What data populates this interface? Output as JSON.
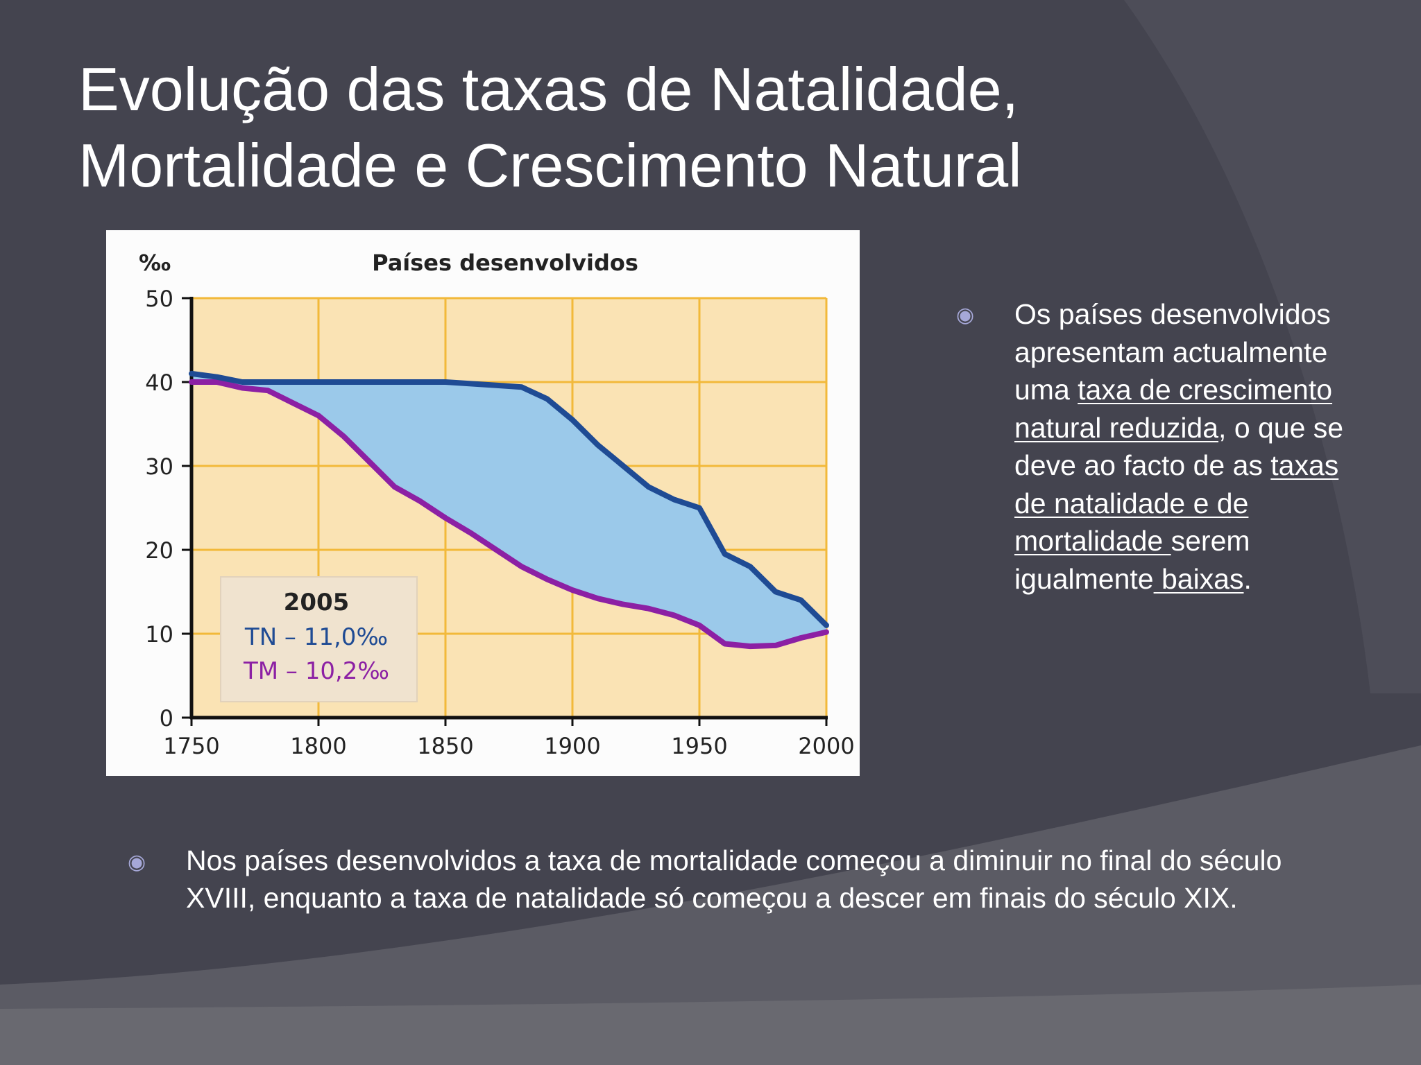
{
  "slide": {
    "title_line1": "Evolução das taxas de Natalidade,",
    "title_line2": "Mortalidade e Crescimento Natural"
  },
  "colors": {
    "background": "#44444f",
    "chart_bg": "#fae3b4",
    "grid": "#f2b93a",
    "natality": "#1f4b94",
    "mortality": "#8c20a4",
    "fill": "#9bc9ea",
    "bullet": "#a6a8d8"
  },
  "bullets": {
    "icon": "circle-dot-icon",
    "right": {
      "p1": "Os países desenvolvidos apresentam actualmente uma ",
      "u1": "taxa de crescimento natural reduzida",
      "p2": ", o que se deve ao facto de as ",
      "u2": "taxas de natalidade e de mortalidade ",
      "p3": "serem igualmente",
      "u3": " baixas",
      "p4": "."
    },
    "bottom": "Nos países desenvolvidos a taxa de mortalidade começou a diminuir no final do século XVIII, enquanto a taxa de natalidade só começou a descer em finais do século XIX."
  },
  "chart_data": {
    "type": "line",
    "title": "Países desenvolvidos",
    "ylabel": "‰",
    "xlabel": "",
    "xlim": [
      1750,
      2000
    ],
    "ylim": [
      0,
      50
    ],
    "x_ticks": [
      "1750",
      "1800",
      "1850",
      "1900",
      "1950",
      "2000"
    ],
    "y_ticks": [
      "0",
      "10",
      "20",
      "30",
      "40",
      "50"
    ],
    "grid": true,
    "series": [
      {
        "name": "TN",
        "color": "#1f4b94",
        "x": [
          1750,
          1760,
          1770,
          1800,
          1850,
          1870,
          1880,
          1890,
          1900,
          1910,
          1920,
          1930,
          1940,
          1950,
          1960,
          1970,
          1980,
          1990,
          2000
        ],
        "y": [
          41,
          40.6,
          40,
          40,
          40,
          39.6,
          39.4,
          38,
          35.5,
          32.5,
          30,
          27.5,
          26,
          25,
          19.5,
          18,
          15,
          14,
          11
        ]
      },
      {
        "name": "TM",
        "color": "#8c20a4",
        "x": [
          1750,
          1760,
          1770,
          1780,
          1790,
          1800,
          1810,
          1820,
          1830,
          1840,
          1850,
          1860,
          1870,
          1880,
          1890,
          1900,
          1910,
          1920,
          1930,
          1940,
          1950,
          1960,
          1970,
          1980,
          1990,
          2000
        ],
        "y": [
          40,
          40,
          39.3,
          39,
          37.5,
          36,
          33.5,
          30.5,
          27.5,
          25.8,
          23.8,
          22,
          20,
          18,
          16.5,
          15.2,
          14.2,
          13.5,
          13,
          12.2,
          11,
          8.8,
          8.5,
          8.6,
          9.5,
          10.2
        ]
      }
    ],
    "annotation": {
      "year": "2005",
      "tn_label": "TN – 11,0‰",
      "tm_label": "TM – 10,2‰"
    }
  }
}
